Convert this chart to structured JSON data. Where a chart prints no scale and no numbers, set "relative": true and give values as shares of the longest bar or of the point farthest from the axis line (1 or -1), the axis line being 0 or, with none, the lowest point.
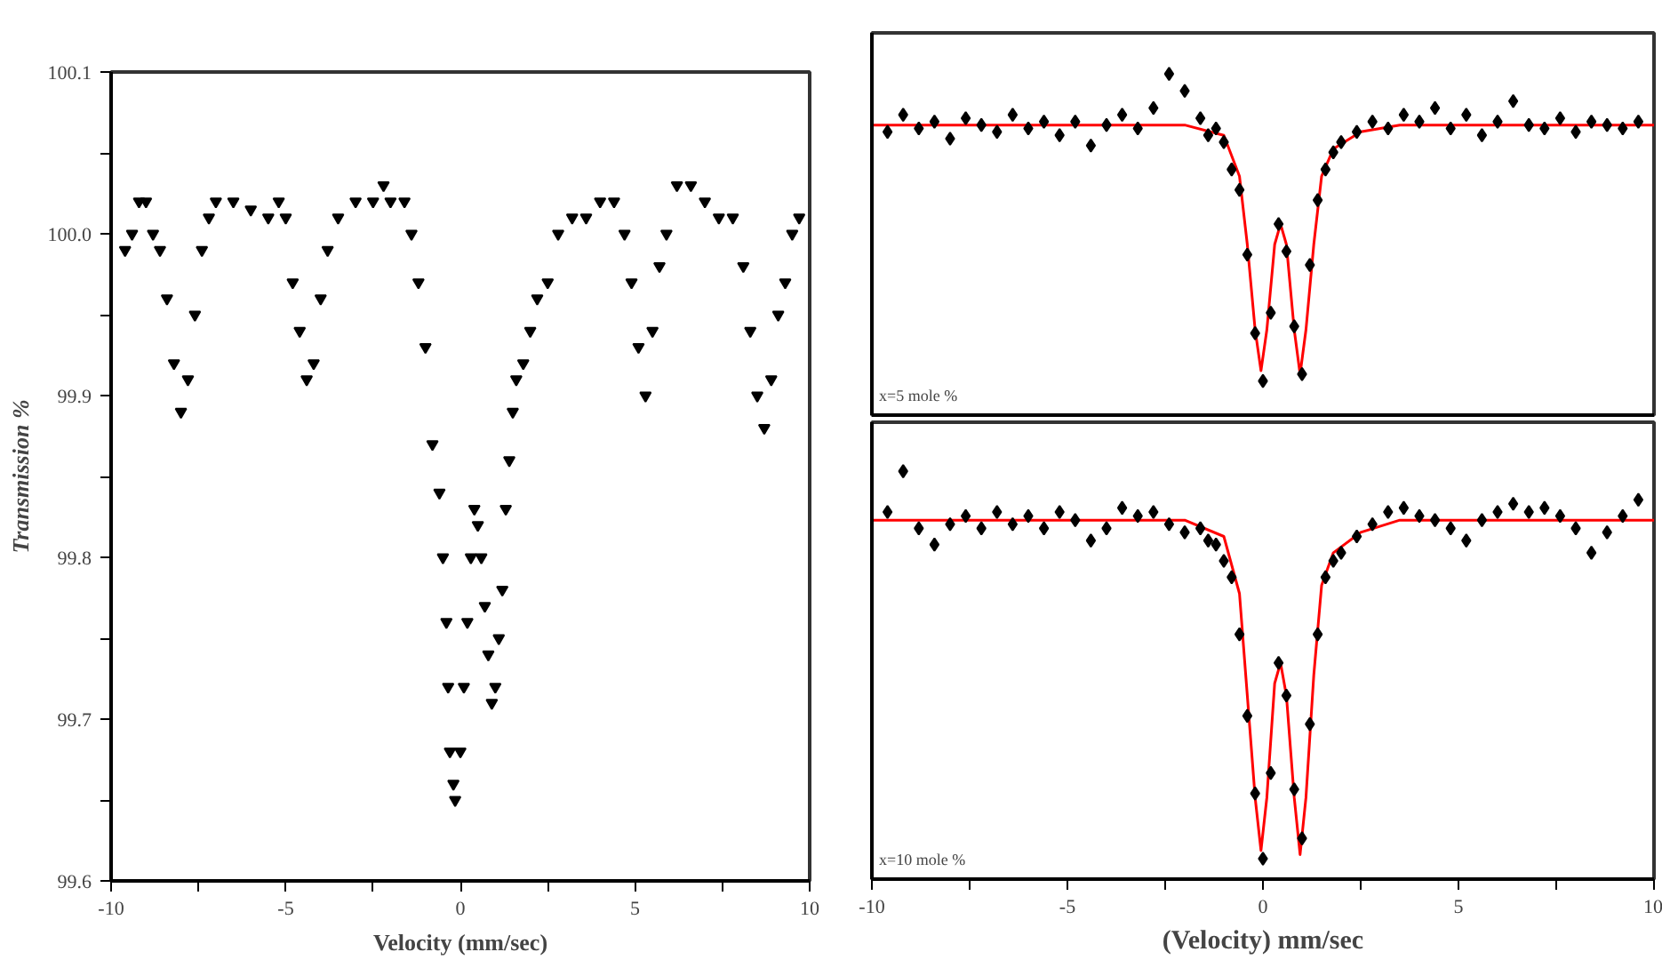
{
  "chart_data": [
    {
      "type": "scatter",
      "xlabel": "Velocity (mm/sec)",
      "ylabel": "Transmission %",
      "marker": "triangle",
      "grid": false,
      "xlim": [
        -10,
        10
      ],
      "xticks": [
        -10,
        {
          "value": -7.5,
          "label": null
        },
        -5,
        {
          "value": -2.5,
          "label": null
        },
        0,
        {
          "value": 2.5,
          "label": null
        },
        5,
        {
          "value": 7.5,
          "label": null
        },
        10
      ],
      "ylim": [
        99.6,
        100.1
      ],
      "yticks": [
        99.6,
        {
          "value": 99.65,
          "label": null
        },
        99.7,
        {
          "value": 99.75,
          "label": null
        },
        99.8,
        {
          "value": 99.85,
          "label": null
        },
        99.9,
        {
          "value": 99.95,
          "label": null
        },
        "100.0",
        {
          "value": 100.05,
          "label": null
        },
        100.1
      ],
      "series": [
        {
          "color": "#000000",
          "x": [
            -9.6,
            -9.4,
            -9.2,
            -9.0,
            -8.8,
            -8.6,
            -8.4,
            -8.2,
            -8.0,
            -7.8,
            -7.6,
            -7.4,
            -7.2,
            -7.0,
            -6.5,
            -6.0,
            -5.5,
            -5.2,
            -5.0,
            -4.8,
            -4.6,
            -4.4,
            -4.2,
            -4.0,
            -3.8,
            -3.5,
            -3.0,
            -2.5,
            -2.2,
            -2.0,
            -1.6,
            -1.4,
            -1.2,
            -1.0,
            -0.8,
            -0.6,
            -0.5,
            -0.4,
            -0.35,
            -0.3,
            -0.2,
            -0.15,
            0.0,
            0.1,
            0.2,
            0.3,
            0.4,
            0.5,
            0.6,
            0.7,
            0.8,
            0.9,
            1.0,
            1.1,
            1.2,
            1.3,
            1.4,
            1.5,
            1.6,
            1.8,
            2.0,
            2.2,
            2.5,
            2.8,
            3.2,
            3.6,
            4.0,
            4.4,
            4.7,
            4.9,
            5.1,
            5.3,
            5.5,
            5.7,
            5.9,
            6.2,
            6.6,
            7.0,
            7.4,
            7.8,
            8.1,
            8.3,
            8.5,
            8.7,
            8.9,
            9.1,
            9.3,
            9.5,
            9.7
          ],
          "values": [
            99.99,
            100.0,
            100.02,
            100.02,
            100.0,
            99.99,
            99.96,
            99.92,
            99.89,
            99.91,
            99.95,
            99.99,
            100.01,
            100.02,
            100.02,
            100.015,
            100.01,
            100.02,
            100.01,
            99.97,
            99.94,
            99.91,
            99.92,
            99.96,
            99.99,
            100.01,
            100.02,
            100.02,
            100.03,
            100.02,
            100.02,
            100.0,
            99.97,
            99.93,
            99.87,
            99.84,
            99.8,
            99.76,
            99.72,
            99.68,
            99.66,
            99.65,
            99.68,
            99.72,
            99.76,
            99.8,
            99.83,
            99.82,
            99.8,
            99.77,
            99.74,
            99.71,
            99.72,
            99.75,
            99.78,
            99.83,
            99.86,
            99.89,
            99.91,
            99.92,
            99.94,
            99.96,
            99.97,
            100.0,
            100.01,
            100.01,
            100.02,
            100.02,
            100.0,
            99.97,
            99.93,
            99.9,
            99.94,
            99.98,
            100.0,
            100.03,
            100.03,
            100.02,
            100.01,
            100.01,
            99.98,
            99.94,
            99.9,
            99.88,
            99.91,
            99.95,
            99.97,
            100.0,
            100.01
          ]
        }
      ]
    },
    {
      "type": "scatter",
      "relative": true,
      "grid": false,
      "tick_labels": false,
      "annotations": [
        "x=5 mole %"
      ],
      "xlim": [
        -10,
        10
      ],
      "series": [
        {
          "color": "#000000",
          "marker": "diamond",
          "x": [
            -9.6,
            -9.2,
            -8.8,
            -8.4,
            -8.0,
            -7.6,
            -7.2,
            -6.8,
            -6.4,
            -6.0,
            -5.6,
            -5.2,
            -4.8,
            -4.4,
            -4.0,
            -3.6,
            -3.2,
            -2.8,
            -2.4,
            -2.0,
            -1.6,
            -1.4,
            -1.2,
            -1.0,
            -0.8,
            -0.6,
            -0.4,
            -0.2,
            0.0,
            0.2,
            0.4,
            0.6,
            0.8,
            1.0,
            1.2,
            1.4,
            1.6,
            1.8,
            2.0,
            2.4,
            2.8,
            3.2,
            3.6,
            4.0,
            4.4,
            4.8,
            5.2,
            5.6,
            6.0,
            6.4,
            6.8,
            7.2,
            7.6,
            8.0,
            8.4,
            8.8,
            9.2,
            9.6
          ],
          "values": [
            0.83,
            0.88,
            0.84,
            0.86,
            0.81,
            0.87,
            0.85,
            0.83,
            0.88,
            0.84,
            0.86,
            0.82,
            0.86,
            0.79,
            0.85,
            0.88,
            0.84,
            0.9,
            1.0,
            0.95,
            0.87,
            0.82,
            0.84,
            0.8,
            0.72,
            0.66,
            0.47,
            0.24,
            0.1,
            0.3,
            0.56,
            0.48,
            0.26,
            0.12,
            0.44,
            0.63,
            0.72,
            0.77,
            0.8,
            0.83,
            0.86,
            0.84,
            0.88,
            0.86,
            0.9,
            0.84,
            0.88,
            0.82,
            0.86,
            0.92,
            0.85,
            0.84,
            0.87,
            0.83,
            0.86,
            0.85,
            0.84,
            0.86
          ]
        },
        {
          "type": "line",
          "color": "#ff0000",
          "x": [
            -10,
            -2,
            -1,
            -0.6,
            -0.4,
            -0.2,
            -0.05,
            0.1,
            0.3,
            0.45,
            0.6,
            0.8,
            0.95,
            1.1,
            1.3,
            1.5,
            1.8,
            2.5,
            3.5,
            10
          ],
          "values": [
            0.85,
            0.85,
            0.82,
            0.7,
            0.5,
            0.25,
            0.13,
            0.25,
            0.5,
            0.56,
            0.5,
            0.25,
            0.12,
            0.25,
            0.5,
            0.7,
            0.78,
            0.83,
            0.85,
            0.85
          ]
        }
      ]
    },
    {
      "type": "scatter",
      "relative": true,
      "grid": false,
      "tick_labels": "x",
      "xlabel": "(Velocity) mm/sec",
      "annotations": [
        "x=10 mole %"
      ],
      "xlim": [
        -10,
        10
      ],
      "xticks": [
        -10,
        {
          "value": -7.5,
          "label": null
        },
        -5,
        {
          "value": -2.5,
          "label": null
        },
        0,
        {
          "value": 2.5,
          "label": null
        },
        5,
        {
          "value": 7.5,
          "label": null
        },
        10
      ],
      "series": [
        {
          "color": "#000000",
          "marker": "diamond",
          "x": [
            -9.6,
            -9.2,
            -8.8,
            -8.4,
            -8.0,
            -7.6,
            -7.2,
            -6.8,
            -6.4,
            -6.0,
            -5.6,
            -5.2,
            -4.8,
            -4.4,
            -4.0,
            -3.6,
            -3.2,
            -2.8,
            -2.4,
            -2.0,
            -1.6,
            -1.4,
            -1.2,
            -1.0,
            -0.8,
            -0.6,
            -0.4,
            -0.2,
            0.0,
            0.2,
            0.4,
            0.6,
            0.8,
            1.0,
            1.2,
            1.4,
            1.6,
            1.8,
            2.0,
            2.4,
            2.8,
            3.2,
            3.6,
            4.0,
            4.4,
            4.8,
            5.2,
            5.6,
            6.0,
            6.4,
            6.8,
            7.2,
            7.6,
            8.0,
            8.4,
            8.8,
            9.2,
            9.6
          ],
          "values": [
            0.9,
            1.0,
            0.86,
            0.82,
            0.87,
            0.89,
            0.86,
            0.9,
            0.87,
            0.89,
            0.86,
            0.9,
            0.88,
            0.83,
            0.86,
            0.91,
            0.89,
            0.9,
            0.87,
            0.85,
            0.86,
            0.83,
            0.82,
            0.78,
            0.74,
            0.6,
            0.4,
            0.21,
            0.05,
            0.26,
            0.53,
            0.45,
            0.22,
            0.1,
            0.38,
            0.6,
            0.74,
            0.78,
            0.8,
            0.84,
            0.87,
            0.9,
            0.91,
            0.89,
            0.88,
            0.86,
            0.83,
            0.88,
            0.9,
            0.92,
            0.9,
            0.91,
            0.89,
            0.86,
            0.8,
            0.85,
            0.89,
            0.93
          ]
        },
        {
          "type": "line",
          "color": "#ff0000",
          "x": [
            -10,
            -2,
            -1,
            -0.6,
            -0.4,
            -0.2,
            -0.05,
            0.1,
            0.3,
            0.45,
            0.6,
            0.8,
            0.95,
            1.1,
            1.3,
            1.5,
            1.8,
            2.5,
            3.5,
            10
          ],
          "values": [
            0.88,
            0.88,
            0.84,
            0.7,
            0.45,
            0.2,
            0.07,
            0.2,
            0.48,
            0.53,
            0.45,
            0.2,
            0.06,
            0.2,
            0.5,
            0.72,
            0.8,
            0.85,
            0.88,
            0.88
          ]
        }
      ]
    }
  ]
}
